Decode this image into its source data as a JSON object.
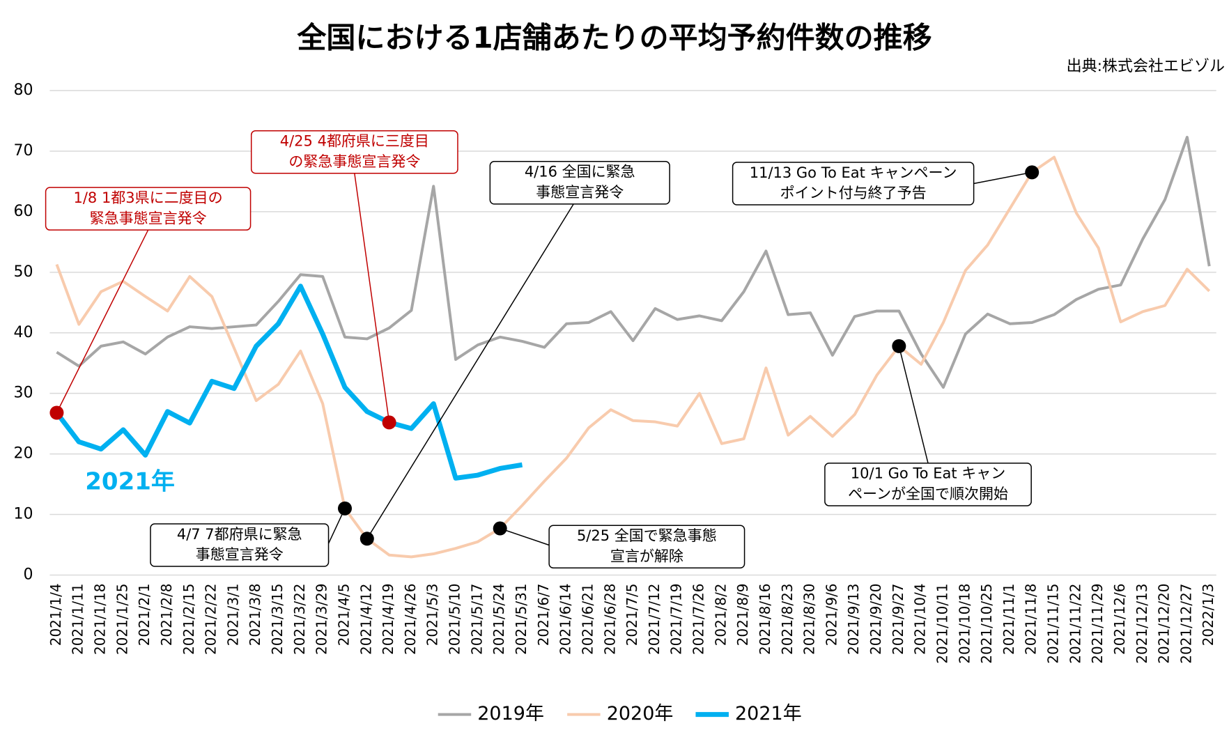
{
  "chart_data": {
    "type": "line",
    "title": "全国における1店舗あたりの平均予約件数の推移",
    "source": "出典:株式会社エビゾル",
    "categories": [
      "2021/1/4",
      "2021/1/11",
      "2021/1/18",
      "2021/1/25",
      "2021/2/1",
      "2021/2/8",
      "2021/2/15",
      "2021/2/22",
      "2021/3/1",
      "2021/3/8",
      "2021/3/15",
      "2021/3/22",
      "2021/3/29",
      "2021/4/5",
      "2021/4/12",
      "2021/4/19",
      "2021/4/26",
      "2021/5/3",
      "2021/5/10",
      "2021/5/17",
      "2021/5/24",
      "2021/5/31",
      "2021/6/7",
      "2021/6/14",
      "2021/6/21",
      "2021/6/28",
      "2021/7/5",
      "2021/7/12",
      "2021/7/19",
      "2021/7/26",
      "2021/8/2",
      "2021/8/9",
      "2021/8/16",
      "2021/8/23",
      "2021/8/30",
      "2021/9/6",
      "2021/9/13",
      "2021/9/20",
      "2021/9/27",
      "2021/10/4",
      "2021/10/11",
      "2021/10/18",
      "2021/10/25",
      "2021/11/1",
      "2021/11/8",
      "2021/11/15",
      "2021/11/22",
      "2021/11/29",
      "2021/12/6",
      "2021/12/13",
      "2021/12/20",
      "2021/12/27",
      "2022/1/3"
    ],
    "series": [
      {
        "name": "2019年",
        "color": "#a6a6a6",
        "values": [
          36.8,
          34.5,
          37.8,
          38.5,
          36.5,
          39.3,
          41,
          40.7,
          41,
          41.3,
          45.2,
          49.6,
          49.3,
          39.3,
          39,
          40.8,
          43.7,
          64.2,
          35.6,
          38,
          39.3,
          38.6,
          37.6,
          41.5,
          41.7,
          43.5,
          38.7,
          44,
          42.2,
          42.8,
          42,
          46.8,
          53.5,
          43,
          43.3,
          36.3,
          42.7,
          43.6,
          43.6,
          36.5,
          31,
          39.8,
          43.1,
          41.5,
          41.7,
          43,
          45.5,
          47.2,
          47.9,
          55.5,
          62,
          72.3,
          51
        ]
      },
      {
        "name": "2020年",
        "color": "#f8cbad",
        "values": [
          51.3,
          41.4,
          46.8,
          48.5,
          46,
          43.6,
          49.3,
          46,
          37.5,
          28.8,
          31.5,
          37,
          28.3,
          11,
          6,
          3.3,
          3,
          3.5,
          4.4,
          5.5,
          7.7,
          11.5,
          15.5,
          19.3,
          24.3,
          27.3,
          25.5,
          25.3,
          24.6,
          30,
          21.7,
          22.5,
          34.2,
          23.1,
          26.2,
          22.9,
          26.5,
          33,
          37.8,
          34.8,
          41.7,
          50.3,
          54.5,
          60.5,
          66.5,
          69,
          59.8,
          54,
          41.8,
          43.5,
          44.5,
          50.5,
          46.9
        ]
      },
      {
        "name": "2021年",
        "color": "#00b0f0",
        "values": [
          26.8,
          22,
          20.8,
          24,
          19.8,
          27,
          25.1,
          32,
          30.8,
          37.8,
          41.5,
          47.7,
          39.8,
          31,
          27,
          25.2,
          24.2,
          28.3,
          16,
          16.5,
          17.6,
          18.2,
          null,
          null,
          null,
          null,
          null,
          null,
          null,
          null,
          null,
          null,
          null,
          null,
          null,
          null,
          null,
          null,
          null,
          null,
          null,
          null,
          null,
          null,
          null,
          null,
          null,
          null,
          null,
          null,
          null,
          null,
          null
        ]
      }
    ],
    "series_label": "2021年",
    "annotations": [
      {
        "lines": [
          "1/8  1都3県に二度目の",
          "緊急事態宣言発令"
        ],
        "color": "#c00000"
      },
      {
        "lines": [
          "4/25  4都府県に三度目",
          "の緊急事態宣言発令"
        ],
        "color": "#c00000"
      },
      {
        "lines": [
          "4/16  全国に緊急",
          "事態宣言発令"
        ],
        "color": "#000000"
      },
      {
        "lines": [
          "11/13  Go To Eat キャンペーン",
          "ポイント付与終了予告"
        ],
        "color": "#000000"
      },
      {
        "lines": [
          "4/7  7都府県に緊急",
          "事態宣言発令"
        ],
        "color": "#000000"
      },
      {
        "lines": [
          "5/25  全国で緊急事態",
          "宣言が解除"
        ],
        "color": "#000000"
      },
      {
        "lines": [
          "10/1  Go To Eat キャン",
          "ペーンが全国で順次開始"
        ],
        "color": "#000000"
      }
    ],
    "ylim": [
      0,
      80
    ],
    "yticks": [
      0,
      10,
      20,
      30,
      40,
      50,
      60,
      70,
      80
    ],
    "grid": true,
    "legend": "bottom"
  }
}
